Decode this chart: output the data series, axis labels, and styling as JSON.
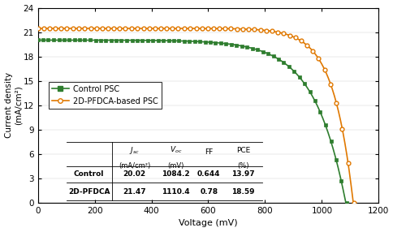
{
  "xlabel": "Voltage (mV)",
  "ylabel": "Current density\n(mA/cm²)",
  "xlim": [
    0,
    1200
  ],
  "ylim": [
    0,
    24
  ],
  "xticks": [
    0,
    200,
    400,
    600,
    800,
    1000,
    1200
  ],
  "yticks": [
    0,
    3,
    6,
    9,
    12,
    15,
    18,
    21,
    24
  ],
  "control_color": "#2e7d2e",
  "pfdca_color": "#e07800",
  "control_jsc": 20.02,
  "control_voc": 1084.2,
  "control_ff": 0.644,
  "control_pce": 13.97,
  "pfdca_jsc": 21.47,
  "pfdca_voc": 1110.4,
  "pfdca_ff": 0.78,
  "pfdca_pce": 18.59,
  "legend_labels": [
    "Control PSC",
    "2D-PFDCA-based PSC"
  ],
  "figsize": [
    4.85,
    2.86
  ],
  "dpi": 100
}
